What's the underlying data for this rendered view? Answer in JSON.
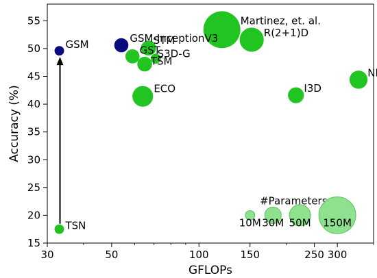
{
  "chart_data": {
    "type": "scatter",
    "xlabel": "GFLOPs",
    "ylabel": "Accuracy (%)",
    "x_scale": "log",
    "xlim": [
      30,
      400
    ],
    "ylim": [
      15,
      58
    ],
    "xticks": [
      30,
      50,
      100,
      150,
      250,
      300
    ],
    "yticks": [
      15,
      20,
      25,
      30,
      35,
      40,
      45,
      50,
      55
    ],
    "grid": false,
    "colors": {
      "green": "#22c422",
      "navy": "#0a0a80",
      "legend_green": "#8fe08f",
      "legend_edge": "#5cc45c"
    },
    "points": [
      {
        "name": "TSN",
        "x": 33,
        "y": 17.5,
        "params_M": 10,
        "color": "green"
      },
      {
        "name": "GSM",
        "x": 33,
        "y": 49.6,
        "params_M": 10,
        "color": "navy"
      },
      {
        "name": "GSM-InceptionV3",
        "x": 54,
        "y": 50.6,
        "params_M": 22,
        "color": "navy"
      },
      {
        "name": "GST",
        "x": 59,
        "y": 48.6,
        "params_M": 22,
        "color": "green"
      },
      {
        "name": "STM",
        "x": 67,
        "y": 50.1,
        "params_M": 25,
        "color": "green"
      },
      {
        "name": "TSM",
        "x": 65,
        "y": 47.2,
        "params_M": 24,
        "color": "green"
      },
      {
        "name": "S3D-G",
        "x": 71,
        "y": 48.2,
        "params_M": 11,
        "color": "green"
      },
      {
        "name": "ECO",
        "x": 64,
        "y": 41.4,
        "params_M": 47,
        "color": "green"
      },
      {
        "name": "Martinez, et. al.",
        "x": 120,
        "y": 53.4,
        "params_M": 150,
        "color": "green"
      },
      {
        "name": "R(2+1)D",
        "x": 152,
        "y": 51.6,
        "params_M": 64,
        "color": "green"
      },
      {
        "name": "I3D",
        "x": 216,
        "y": 41.6,
        "params_M": 28,
        "color": "green"
      },
      {
        "name": "NL",
        "x": 355,
        "y": 44.4,
        "params_M": 36,
        "color": "green"
      }
    ],
    "legend": {
      "title": "#Parameters",
      "entries": [
        {
          "label": "10M",
          "params_M": 10,
          "x": 150
        },
        {
          "label": "30M",
          "params_M": 30,
          "x": 180
        },
        {
          "label": "50M",
          "params_M": 50,
          "x": 223
        },
        {
          "label": "150M",
          "params_M": 150,
          "x": 300
        }
      ],
      "y": 20
    }
  }
}
